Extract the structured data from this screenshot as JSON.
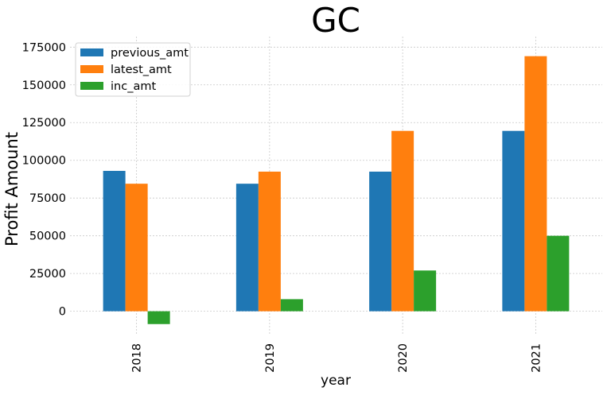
{
  "chart_data": {
    "type": "bar",
    "title": "GC",
    "xlabel": "year",
    "ylabel": "Profit Amount",
    "categories": [
      "2018",
      "2019",
      "2020",
      "2021"
    ],
    "series": [
      {
        "name": "previous_amt",
        "color": "#1f77b4",
        "values": [
          93000,
          84500,
          92500,
          119500
        ]
      },
      {
        "name": "latest_amt",
        "color": "#ff7f0e",
        "values": [
          84500,
          92500,
          119500,
          169000
        ]
      },
      {
        "name": "inc_amt",
        "color": "#2ca02c",
        "values": [
          -8500,
          8000,
          27000,
          50000
        ]
      }
    ],
    "yticks": [
      "0",
      "25000",
      "50000",
      "75000",
      "100000",
      "125000",
      "150000",
      "175000"
    ],
    "ylim": [
      -16000,
      182000
    ],
    "grid": true,
    "legend_position": "top-left"
  }
}
